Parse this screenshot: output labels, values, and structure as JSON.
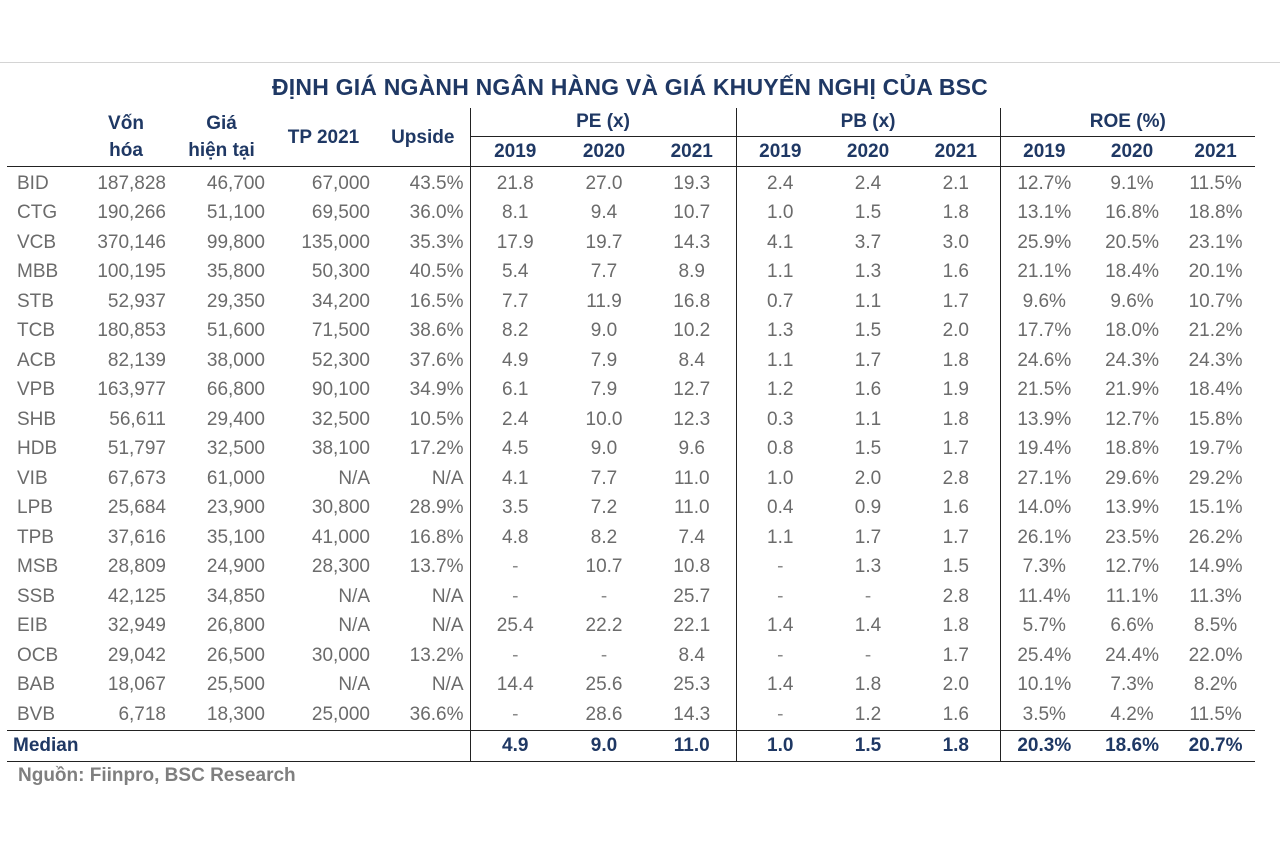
{
  "title": "ĐỊNH GIÁ NGÀNH NGÂN HÀNG VÀ GIÁ KHUYẾN NGHỊ CỦA BSC",
  "headers": {
    "market_cap_line1": "Vốn",
    "market_cap_line2": "hóa",
    "price_line1": "Giá",
    "price_line2": "hiện tại",
    "tp": "TP 2021",
    "upside": "Upside",
    "pe": "PE (x)",
    "pb": "PB (x)",
    "roe": "ROE (%)",
    "years": [
      "2019",
      "2020",
      "2021"
    ]
  },
  "rows": [
    {
      "bank": "BID",
      "cap": "187,828",
      "price": "46,700",
      "tp": "67,000",
      "upside": "43.5%",
      "pe": [
        "21.8",
        "27.0",
        "19.3"
      ],
      "pb": [
        "2.4",
        "2.4",
        "2.1"
      ],
      "roe": [
        "12.7%",
        "9.1%",
        "11.5%"
      ]
    },
    {
      "bank": "CTG",
      "cap": "190,266",
      "price": "51,100",
      "tp": "69,500",
      "upside": "36.0%",
      "pe": [
        "8.1",
        "9.4",
        "10.7"
      ],
      "pb": [
        "1.0",
        "1.5",
        "1.8"
      ],
      "roe": [
        "13.1%",
        "16.8%",
        "18.8%"
      ]
    },
    {
      "bank": "VCB",
      "cap": "370,146",
      "price": "99,800",
      "tp": "135,000",
      "upside": "35.3%",
      "pe": [
        "17.9",
        "19.7",
        "14.3"
      ],
      "pb": [
        "4.1",
        "3.7",
        "3.0"
      ],
      "roe": [
        "25.9%",
        "20.5%",
        "23.1%"
      ]
    },
    {
      "bank": "MBB",
      "cap": "100,195",
      "price": "35,800",
      "tp": "50,300",
      "upside": "40.5%",
      "pe": [
        "5.4",
        "7.7",
        "8.9"
      ],
      "pb": [
        "1.1",
        "1.3",
        "1.6"
      ],
      "roe": [
        "21.1%",
        "18.4%",
        "20.1%"
      ]
    },
    {
      "bank": "STB",
      "cap": "52,937",
      "price": "29,350",
      "tp": "34,200",
      "upside": "16.5%",
      "pe": [
        "7.7",
        "11.9",
        "16.8"
      ],
      "pb": [
        "0.7",
        "1.1",
        "1.7"
      ],
      "roe": [
        "9.6%",
        "9.6%",
        "10.7%"
      ]
    },
    {
      "bank": "TCB",
      "cap": "180,853",
      "price": "51,600",
      "tp": "71,500",
      "upside": "38.6%",
      "pe": [
        "8.2",
        "9.0",
        "10.2"
      ],
      "pb": [
        "1.3",
        "1.5",
        "2.0"
      ],
      "roe": [
        "17.7%",
        "18.0%",
        "21.2%"
      ]
    },
    {
      "bank": "ACB",
      "cap": "82,139",
      "price": "38,000",
      "tp": "52,300",
      "upside": "37.6%",
      "pe": [
        "4.9",
        "7.9",
        "8.4"
      ],
      "pb": [
        "1.1",
        "1.7",
        "1.8"
      ],
      "roe": [
        "24.6%",
        "24.3%",
        "24.3%"
      ]
    },
    {
      "bank": "VPB",
      "cap": "163,977",
      "price": "66,800",
      "tp": "90,100",
      "upside": "34.9%",
      "pe": [
        "6.1",
        "7.9",
        "12.7"
      ],
      "pb": [
        "1.2",
        "1.6",
        "1.9"
      ],
      "roe": [
        "21.5%",
        "21.9%",
        "18.4%"
      ]
    },
    {
      "bank": "SHB",
      "cap": "56,611",
      "price": "29,400",
      "tp": "32,500",
      "upside": "10.5%",
      "pe": [
        "2.4",
        "10.0",
        "12.3"
      ],
      "pb": [
        "0.3",
        "1.1",
        "1.8"
      ],
      "roe": [
        "13.9%",
        "12.7%",
        "15.8%"
      ]
    },
    {
      "bank": "HDB",
      "cap": "51,797",
      "price": "32,500",
      "tp": "38,100",
      "upside": "17.2%",
      "pe": [
        "4.5",
        "9.0",
        "9.6"
      ],
      "pb": [
        "0.8",
        "1.5",
        "1.7"
      ],
      "roe": [
        "19.4%",
        "18.8%",
        "19.7%"
      ]
    },
    {
      "bank": "VIB",
      "cap": "67,673",
      "price": "61,000",
      "tp": "N/A",
      "upside": "N/A",
      "pe": [
        "4.1",
        "7.7",
        "11.0"
      ],
      "pb": [
        "1.0",
        "2.0",
        "2.8"
      ],
      "roe": [
        "27.1%",
        "29.6%",
        "29.2%"
      ]
    },
    {
      "bank": "LPB",
      "cap": "25,684",
      "price": "23,900",
      "tp": "30,800",
      "upside": "28.9%",
      "pe": [
        "3.5",
        "7.2",
        "11.0"
      ],
      "pb": [
        "0.4",
        "0.9",
        "1.6"
      ],
      "roe": [
        "14.0%",
        "13.9%",
        "15.1%"
      ]
    },
    {
      "bank": "TPB",
      "cap": "37,616",
      "price": "35,100",
      "tp": "41,000",
      "upside": "16.8%",
      "pe": [
        "4.8",
        "8.2",
        "7.4"
      ],
      "pb": [
        "1.1",
        "1.7",
        "1.7"
      ],
      "roe": [
        "26.1%",
        "23.5%",
        "26.2%"
      ]
    },
    {
      "bank": "MSB",
      "cap": "28,809",
      "price": "24,900",
      "tp": "28,300",
      "upside": "13.7%",
      "pe": [
        "-",
        "10.7",
        "10.8"
      ],
      "pb": [
        "-",
        "1.3",
        "1.5"
      ],
      "roe": [
        "7.3%",
        "12.7%",
        "14.9%"
      ]
    },
    {
      "bank": "SSB",
      "cap": "42,125",
      "price": "34,850",
      "tp": "N/A",
      "upside": "N/A",
      "pe": [
        "-",
        "-",
        "25.7"
      ],
      "pb": [
        "-",
        "-",
        "2.8"
      ],
      "roe": [
        "11.4%",
        "11.1%",
        "11.3%"
      ]
    },
    {
      "bank": "EIB",
      "cap": "32,949",
      "price": "26,800",
      "tp": "N/A",
      "upside": "N/A",
      "pe": [
        "25.4",
        "22.2",
        "22.1"
      ],
      "pb": [
        "1.4",
        "1.4",
        "1.8"
      ],
      "roe": [
        "5.7%",
        "6.6%",
        "8.5%"
      ]
    },
    {
      "bank": "OCB",
      "cap": "29,042",
      "price": "26,500",
      "tp": "30,000",
      "upside": "13.2%",
      "pe": [
        "-",
        "-",
        "8.4"
      ],
      "pb": [
        "-",
        "-",
        "1.7"
      ],
      "roe": [
        "25.4%",
        "24.4%",
        "22.0%"
      ]
    },
    {
      "bank": "BAB",
      "cap": "18,067",
      "price": "25,500",
      "tp": "N/A",
      "upside": "N/A",
      "pe": [
        "14.4",
        "25.6",
        "25.3"
      ],
      "pb": [
        "1.4",
        "1.8",
        "2.0"
      ],
      "roe": [
        "10.1%",
        "7.3%",
        "8.2%"
      ]
    },
    {
      "bank": "BVB",
      "cap": "6,718",
      "price": "18,300",
      "tp": "25,000",
      "upside": "36.6%",
      "pe": [
        "-",
        "28.6",
        "14.3"
      ],
      "pb": [
        "-",
        "1.2",
        "1.6"
      ],
      "roe": [
        "3.5%",
        "4.2%",
        "11.5%"
      ]
    }
  ],
  "median": {
    "label": "Median",
    "pe": [
      "4.9",
      "9.0",
      "11.0"
    ],
    "pb": [
      "1.0",
      "1.5",
      "1.8"
    ],
    "roe": [
      "20.3%",
      "18.6%",
      "20.7%"
    ]
  },
  "source": "Nguồn: Fiinpro, BSC Research"
}
